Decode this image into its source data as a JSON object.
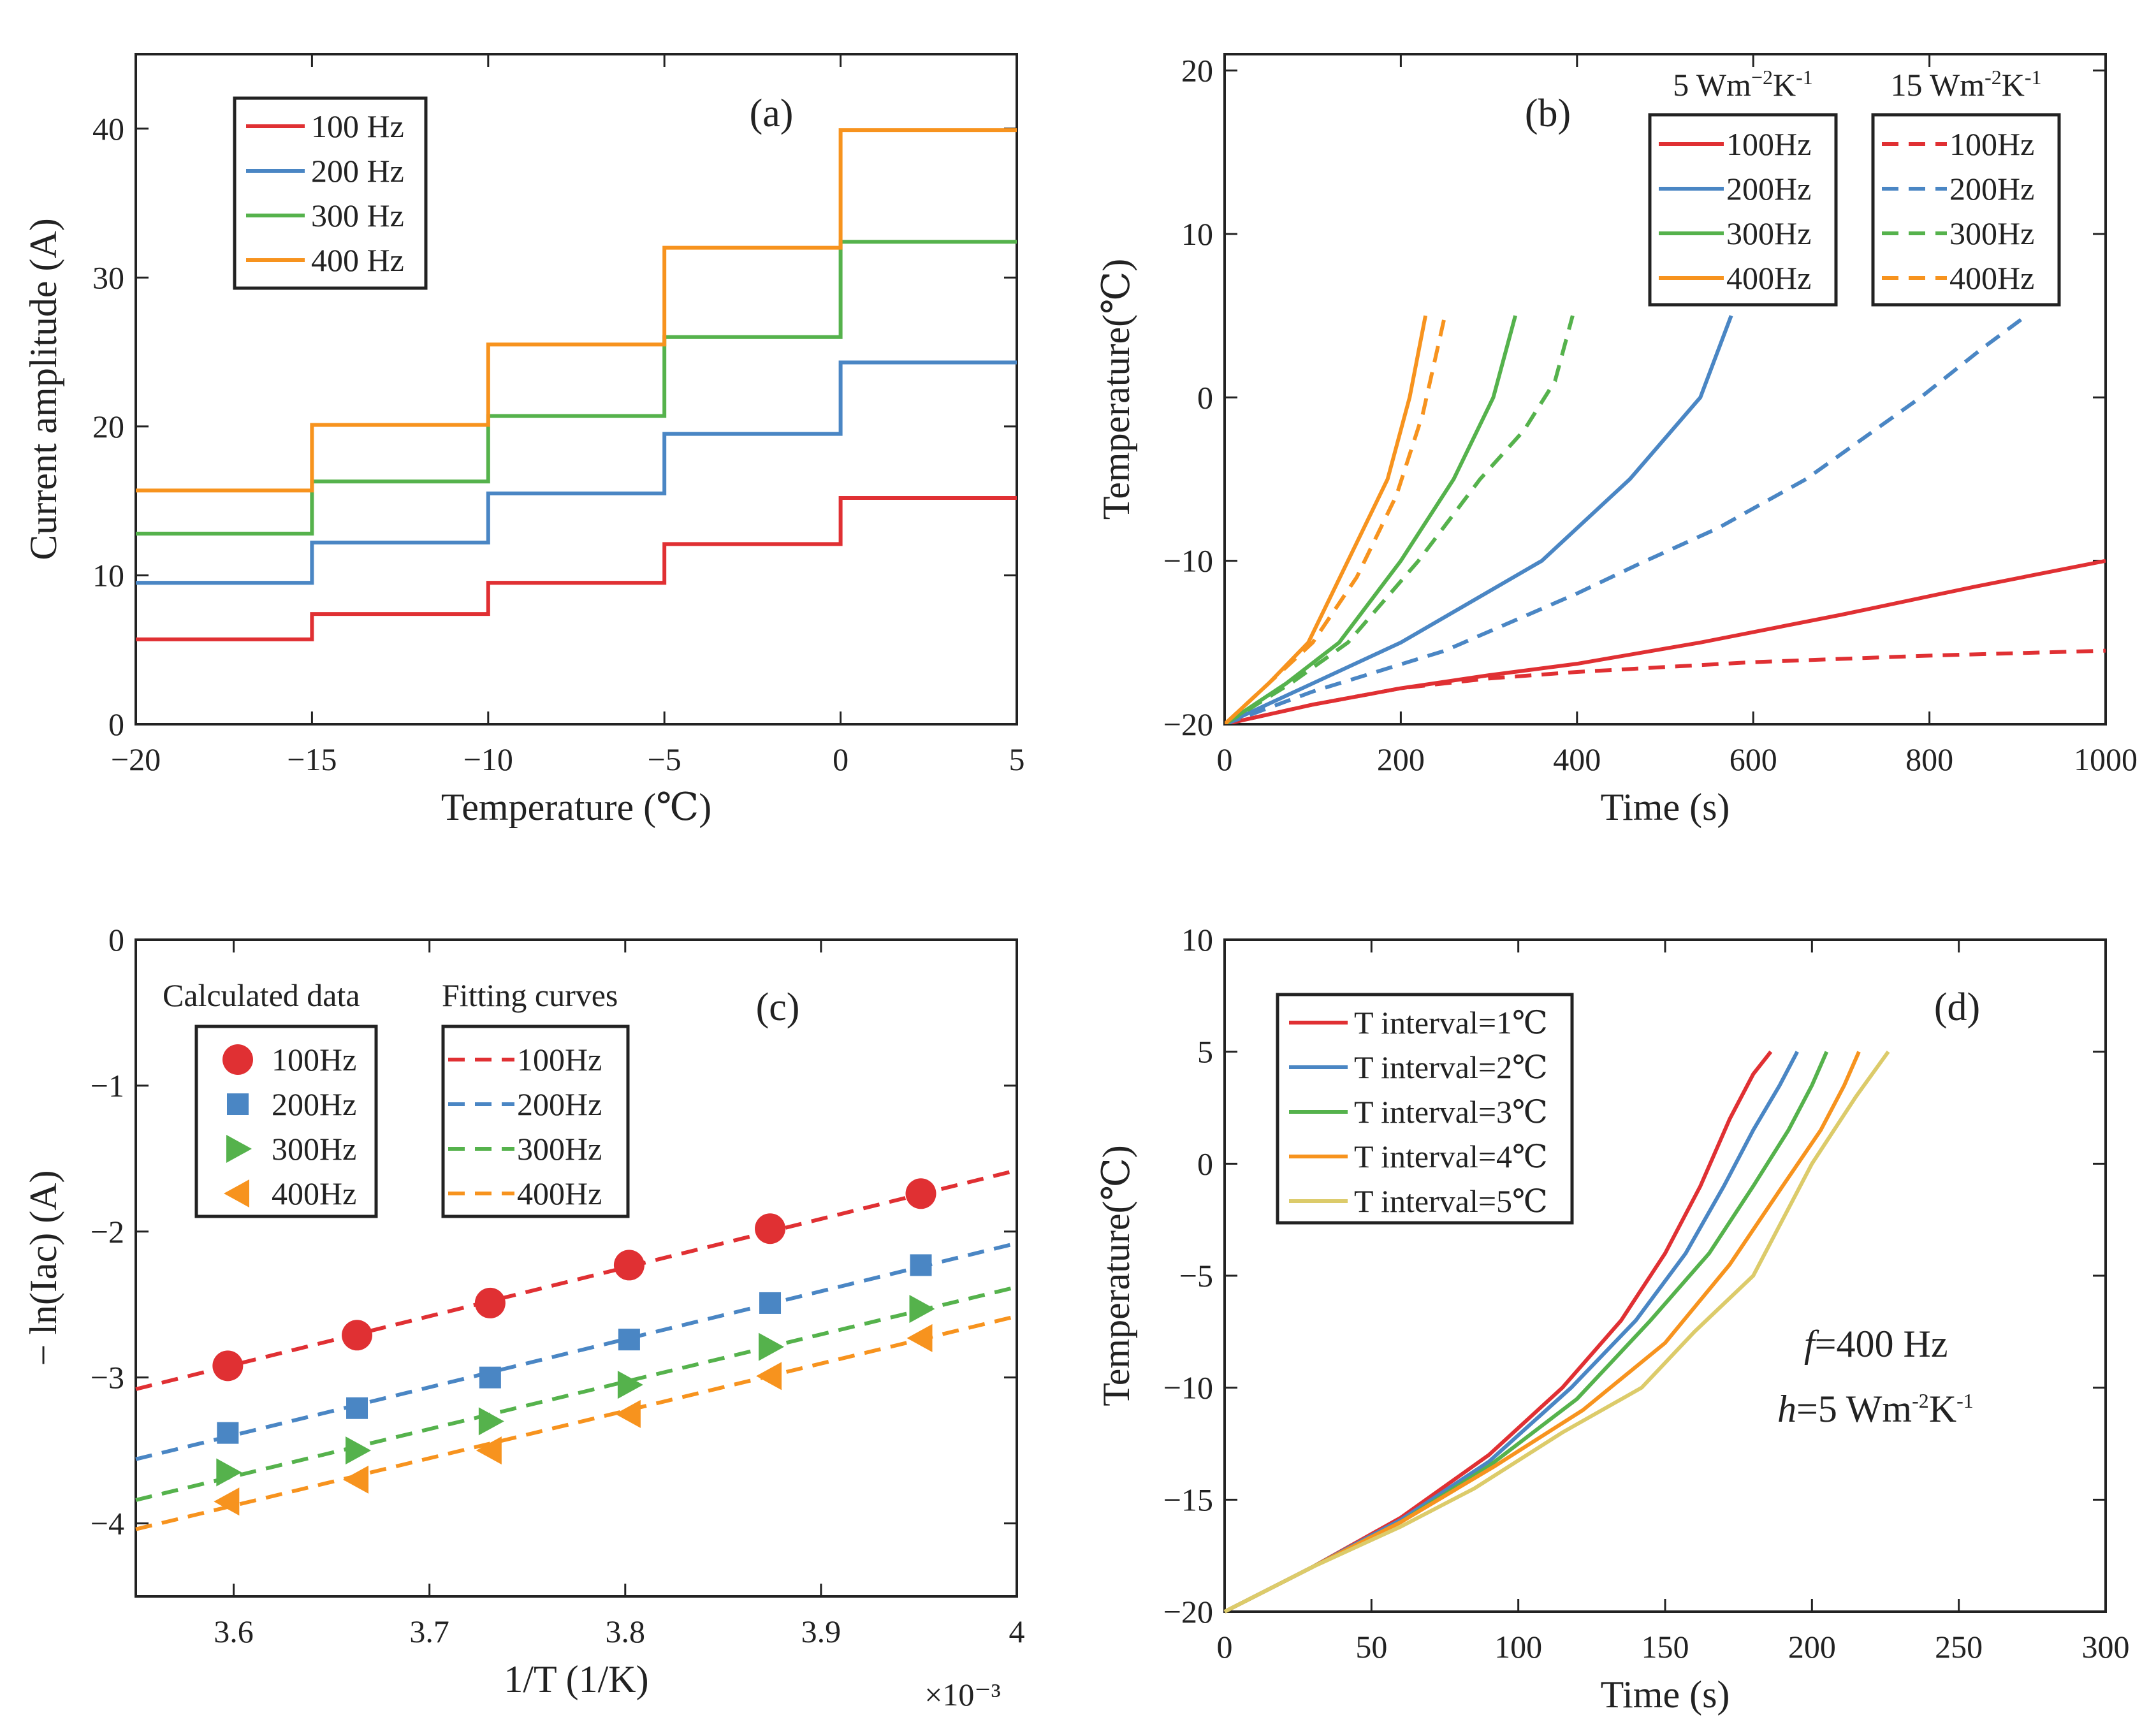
{
  "colors": {
    "100": "#e03033",
    "200": "#4a86c4",
    "300": "#55b24c",
    "400": "#f7931e",
    "500": "#dccb6a",
    "axis": "#222222"
  },
  "chart_data": [
    {
      "id": "a",
      "type": "line",
      "step": true,
      "panel_label": "(a)",
      "xlabel": "Temperature (℃)",
      "ylabel": "Current amplitude (A)",
      "xlim": [
        -20,
        5
      ],
      "ylim": [
        0,
        45
      ],
      "xticks": [
        -20,
        -15,
        -10,
        -5,
        0,
        5
      ],
      "yticks": [
        0,
        10,
        20,
        30,
        40
      ],
      "xtick_labels": [
        "−20",
        "−15",
        "−10",
        "−5",
        "0",
        "5"
      ],
      "ytick_labels": [
        "0",
        "10",
        "20",
        "30",
        "40"
      ],
      "x": [
        -20,
        -15,
        -10,
        -5,
        0,
        5
      ],
      "series": [
        {
          "name": "100 Hz",
          "color_key": "100",
          "values": [
            5.7,
            7.4,
            9.5,
            12.1,
            15.2,
            15.2
          ]
        },
        {
          "name": "200 Hz",
          "color_key": "200",
          "values": [
            9.5,
            12.2,
            15.5,
            19.5,
            24.3,
            24.3
          ]
        },
        {
          "name": "300 Hz",
          "color_key": "300",
          "values": [
            12.8,
            16.3,
            20.7,
            26.0,
            32.4,
            32.4
          ]
        },
        {
          "name": "400 Hz",
          "color_key": "400",
          "values": [
            15.7,
            20.1,
            25.5,
            32.0,
            39.9,
            39.9
          ]
        }
      ]
    },
    {
      "id": "b",
      "type": "line",
      "panel_label": "(b)",
      "xlabel": "Time (s)",
      "ylabel": "Temperature(℃)",
      "xlim": [
        0,
        1000
      ],
      "ylim": [
        -20,
        21
      ],
      "xticks": [
        0,
        200,
        400,
        600,
        800,
        1000
      ],
      "yticks": [
        -20,
        -10,
        0,
        10,
        20
      ],
      "xtick_labels": [
        "0",
        "200",
        "400",
        "600",
        "800",
        "1000"
      ],
      "ytick_labels": [
        "−20",
        "−10",
        "0",
        "10",
        "20"
      ],
      "legend_groups": [
        {
          "title_main": "5 Wm",
          "title_sup1": "−2",
          "title_mid": "K",
          "title_sup2": "-1"
        },
        {
          "title_main": "15 Wm",
          "title_sup1": "-2",
          "title_mid": "K",
          "title_sup2": "-1"
        }
      ],
      "series": [
        {
          "name": "100Hz",
          "color_key": "100",
          "dash": false,
          "x": [
            0,
            100,
            200,
            300,
            400,
            540,
            700,
            850,
            1000
          ],
          "y": [
            -20,
            -18.8,
            -17.8,
            -17,
            -16.3,
            -15,
            -13.3,
            -11.6,
            -10
          ]
        },
        {
          "name": "200Hz",
          "color_key": "200",
          "dash": false,
          "x": [
            0,
            100,
            200,
            280,
            360,
            460,
            540,
            575
          ],
          "y": [
            -20,
            -17.5,
            -15,
            -12.5,
            -10,
            -5,
            0,
            5
          ]
        },
        {
          "name": "300Hz",
          "color_key": "300",
          "dash": false,
          "x": [
            0,
            70,
            130,
            200,
            260,
            305,
            330
          ],
          "y": [
            -20,
            -17.5,
            -15,
            -10,
            -5,
            0,
            5
          ]
        },
        {
          "name": "400Hz",
          "color_key": "400",
          "dash": false,
          "x": [
            0,
            50,
            95,
            140,
            185,
            210,
            228
          ],
          "y": [
            -20,
            -17.5,
            -15,
            -10,
            -5,
            0,
            5
          ]
        },
        {
          "name": "100Hz",
          "color_key": "100",
          "dash": true,
          "x": [
            0,
            100,
            200,
            300,
            400,
            600,
            800,
            1000
          ],
          "y": [
            -20,
            -18.8,
            -17.8,
            -17.2,
            -16.8,
            -16.2,
            -15.8,
            -15.5
          ]
        },
        {
          "name": "200Hz",
          "color_key": "200",
          "dash": true,
          "x": [
            0,
            100,
            250,
            400,
            470,
            560,
            660,
            790,
            860,
            910
          ],
          "y": [
            -20,
            -18,
            -15.5,
            -12,
            -10.2,
            -8,
            -5,
            0,
            3,
            5
          ]
        },
        {
          "name": "300Hz",
          "color_key": "300",
          "dash": true,
          "x": [
            0,
            75,
            140,
            220,
            290,
            340,
            375,
            395
          ],
          "y": [
            -20,
            -17.5,
            -15,
            -10,
            -5,
            -2,
            1,
            5
          ]
        },
        {
          "name": "400Hz",
          "color_key": "400",
          "dash": true,
          "x": [
            0,
            50,
            100,
            150,
            195,
            225,
            250
          ],
          "y": [
            -20,
            -17.5,
            -15,
            -11,
            -6,
            -1,
            5
          ]
        }
      ]
    },
    {
      "id": "c",
      "type": "scatter",
      "panel_label": "(c)",
      "xlabel": "1/T (1/K)",
      "ylabel": "− ln(Iac) (A)",
      "x_multiplier": "×10⁻³",
      "xlim": [
        3.55,
        4.0
      ],
      "ylim": [
        -4.5,
        0
      ],
      "xticks": [
        3.6,
        3.7,
        3.8,
        3.9,
        4.0
      ],
      "yticks": [
        -4,
        -3,
        -2,
        -1,
        0
      ],
      "xtick_labels": [
        "3.6",
        "3.7",
        "3.8",
        "3.9",
        "4"
      ],
      "ytick_labels": [
        "−4",
        "−3",
        "−2",
        "−1",
        "0"
      ],
      "legend_titles": [
        "Calculated data",
        "Fitting curves"
      ],
      "x": [
        3.597,
        3.663,
        3.731,
        3.802,
        3.874,
        3.951
      ],
      "series": [
        {
          "name": "100Hz",
          "color_key": "100",
          "marker": "circle",
          "values": [
            -2.92,
            -2.71,
            -2.49,
            -2.23,
            -1.98,
            -1.74
          ],
          "fit": [
            [
              3.55,
              -3.08
            ],
            [
              4.0,
              -1.58
            ]
          ]
        },
        {
          "name": "200Hz",
          "color_key": "200",
          "marker": "square",
          "values": [
            -3.38,
            -3.21,
            -3.0,
            -2.74,
            -2.49,
            -2.23
          ],
          "fit": [
            [
              3.55,
              -3.56
            ],
            [
              4.0,
              -2.08
            ]
          ]
        },
        {
          "name": "300Hz",
          "color_key": "300",
          "marker": "triangle-right",
          "values": [
            -3.65,
            -3.5,
            -3.3,
            -3.05,
            -2.79,
            -2.53
          ],
          "fit": [
            [
              3.55,
              -3.84
            ],
            [
              4.0,
              -2.38
            ]
          ]
        },
        {
          "name": "400Hz",
          "color_key": "400",
          "marker": "triangle-left",
          "values": [
            -3.85,
            -3.7,
            -3.5,
            -3.25,
            -2.99,
            -2.73
          ],
          "fit": [
            [
              3.55,
              -4.04
            ],
            [
              4.0,
              -2.58
            ]
          ]
        }
      ]
    },
    {
      "id": "d",
      "type": "line",
      "panel_label": "(d)",
      "xlabel": "Time (s)",
      "ylabel": "Temperature(℃)",
      "xlim": [
        0,
        300
      ],
      "ylim": [
        -20,
        10
      ],
      "xticks": [
        0,
        50,
        100,
        150,
        200,
        250,
        300
      ],
      "yticks": [
        -20,
        -15,
        -10,
        -5,
        0,
        5,
        10
      ],
      "xtick_labels": [
        "0",
        "50",
        "100",
        "150",
        "200",
        "250",
        "300"
      ],
      "ytick_labels": [
        "−20",
        "−15",
        "−10",
        "−5",
        "0",
        "5",
        "10"
      ],
      "annotation_f": {
        "var": "f",
        "text": "=400 Hz"
      },
      "annotation_h": {
        "var": "h",
        "text": "=5 Wm",
        "sup1": "-2",
        "mid": "K",
        "sup2": "-1"
      },
      "series": [
        {
          "name": "T interval=1℃",
          "color_key": "100",
          "x": [
            0,
            30,
            60,
            90,
            115,
            135,
            150,
            162,
            172,
            180,
            186
          ],
          "y": [
            -20,
            -18,
            -15.8,
            -13,
            -10,
            -7,
            -4,
            -1,
            2,
            4,
            5
          ]
        },
        {
          "name": "T interval=2℃",
          "color_key": "200",
          "x": [
            0,
            30,
            60,
            90,
            118,
            140,
            157,
            170,
            180,
            189,
            195
          ],
          "y": [
            -20,
            -18,
            -15.9,
            -13.3,
            -10,
            -7,
            -4,
            -1,
            1.5,
            3.5,
            5
          ]
        },
        {
          "name": "T interval=3℃",
          "color_key": "300",
          "x": [
            0,
            30,
            60,
            90,
            120,
            145,
            165,
            180,
            192,
            200,
            205
          ],
          "y": [
            -20,
            -18,
            -16,
            -13.5,
            -10.5,
            -7,
            -4,
            -1,
            1.5,
            3.5,
            5
          ]
        },
        {
          "name": "T interval=4℃",
          "color_key": "400",
          "x": [
            0,
            30,
            60,
            92,
            122,
            150,
            172,
            190,
            203,
            211,
            216
          ],
          "y": [
            -20,
            -18,
            -16,
            -13.5,
            -11,
            -8,
            -4.5,
            -1,
            1.5,
            3.5,
            5
          ]
        },
        {
          "name": "T interval=5℃",
          "color_key": "500",
          "x": [
            0,
            30,
            60,
            85,
            115,
            142,
            160,
            180,
            200,
            215,
            226
          ],
          "y": [
            -20,
            -18,
            -16.2,
            -14.5,
            -12,
            -10,
            -7.5,
            -5,
            0,
            3,
            5
          ]
        }
      ]
    }
  ]
}
